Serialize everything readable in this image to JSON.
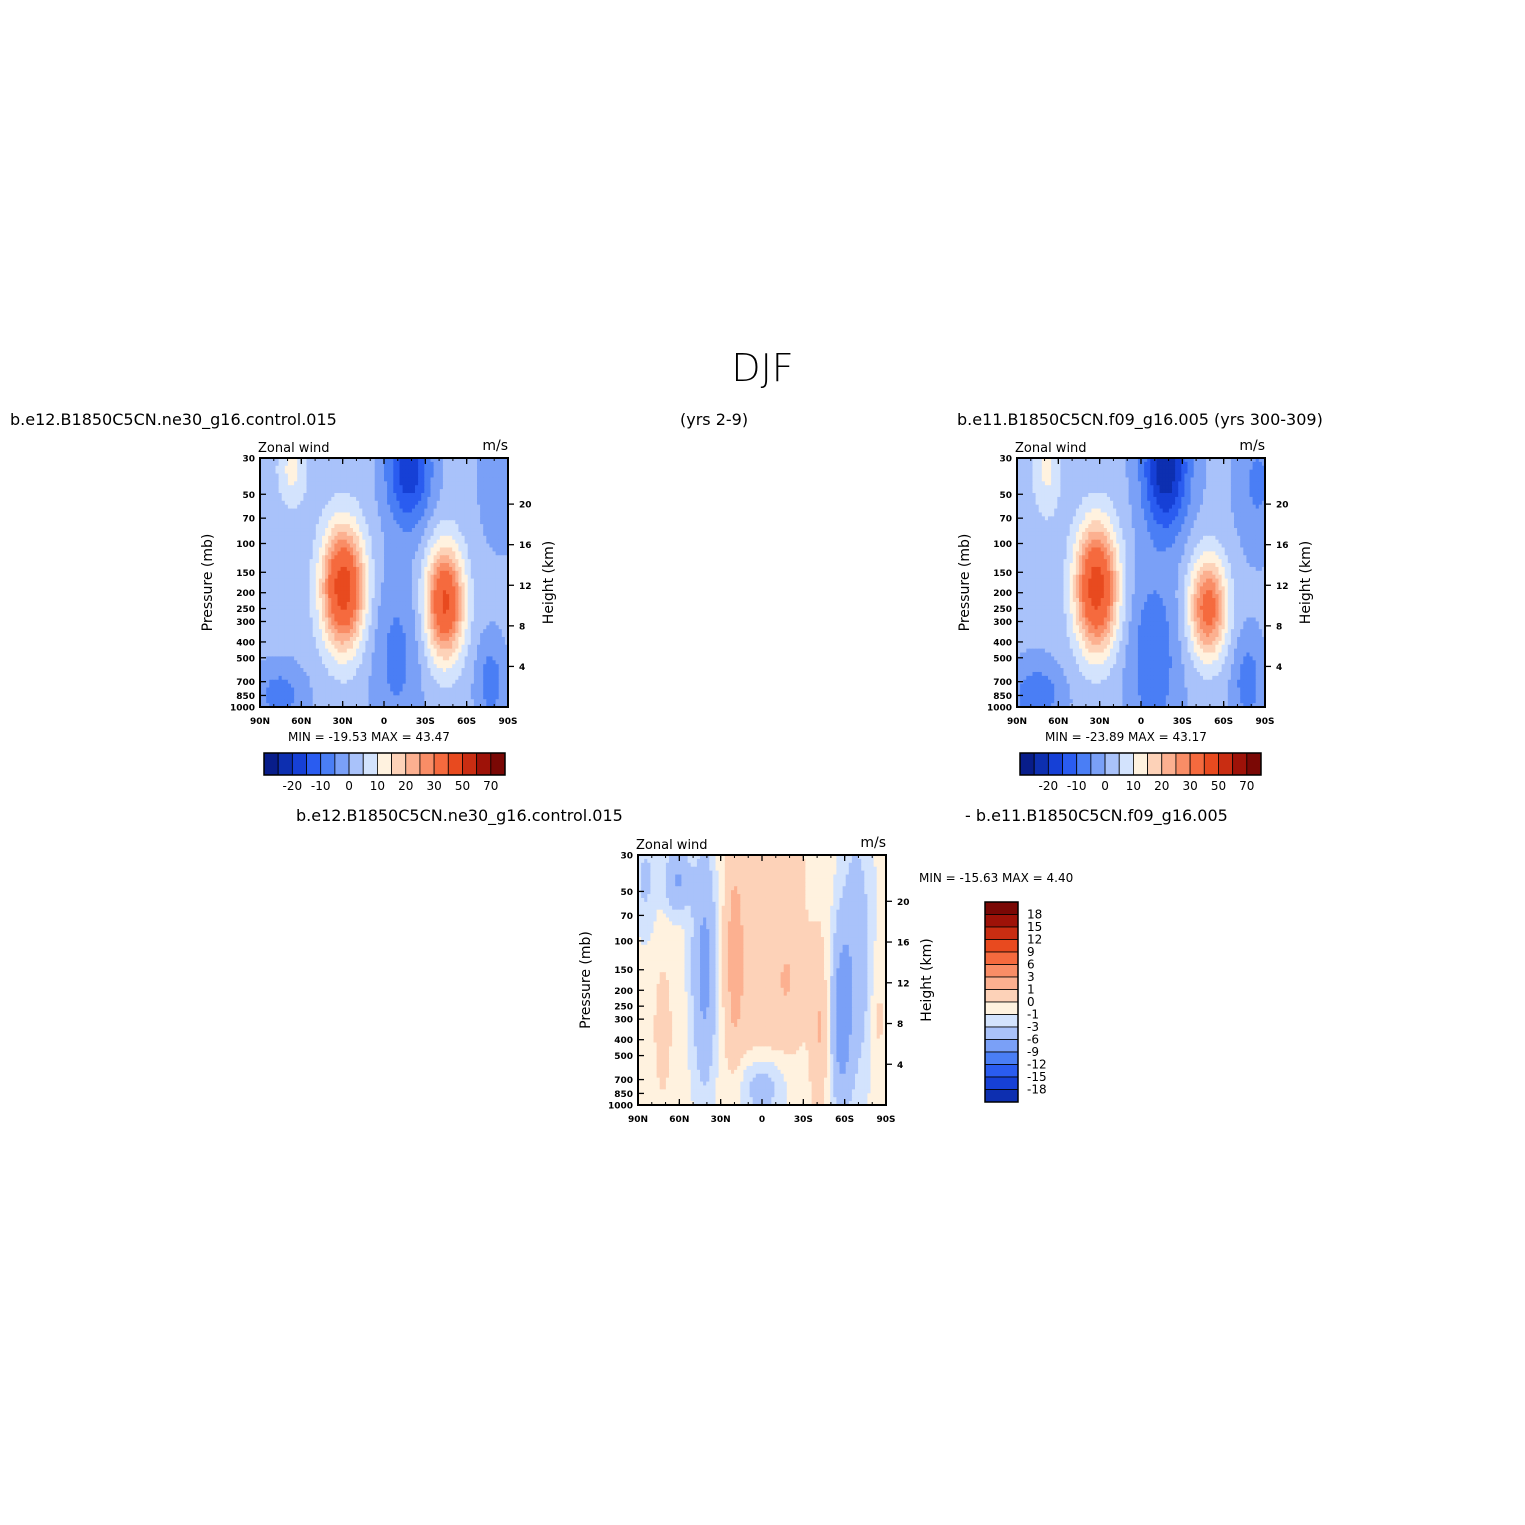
{
  "page": {
    "title": "DJF",
    "header_left": "b.e12.B1850C5CN.ne30_g16.control.015",
    "header_center": "(yrs 2-9)",
    "header_right": "b.e11.B1850C5CN.f09_g16.005 (yrs 300-309)",
    "diff_left": "b.e12.B1850C5CN.ne30_g16.control.015",
    "diff_right": "- b.e11.B1850C5CN.f09_g16.005"
  },
  "colors": {
    "abs_levels": [
      "#081d8a",
      "#0d2fb0",
      "#1640d6",
      "#2a5cf0",
      "#4a7ef5",
      "#7aa0f7",
      "#a9c2fa",
      "#d3e3fd",
      "#fff2df",
      "#fdd2b8",
      "#fcb090",
      "#f98d66",
      "#f56a3e",
      "#e84a1f",
      "#c92d12",
      "#9e1208",
      "#7a0805"
    ],
    "diff_levels": [
      "#081d8a",
      "#0d2fb0",
      "#1640d6",
      "#2a5cf0",
      "#4a7ef5",
      "#7aa0f7",
      "#a9c2fa",
      "#d3e3fd",
      "#fff2df",
      "#fdd2b8",
      "#fcb090",
      "#f98d66",
      "#f56a3e",
      "#e84a1f",
      "#c92d12",
      "#9e1208",
      "#7a0805"
    ]
  },
  "chart_data": [
    {
      "type": "heatmap",
      "title_left": "Zonal wind",
      "title_right": "m/s",
      "ylabel": "Pressure (mb)",
      "ylabel_right": "Height (km)",
      "x_ticks": [
        "90N",
        "60N",
        "30N",
        "0",
        "30S",
        "60S",
        "90S"
      ],
      "y_ticks": [
        "30",
        "50",
        "70",
        "100",
        "150",
        "200",
        "250",
        "300",
        "400",
        "500",
        "700",
        "850",
        "1000"
      ],
      "y_ticks_right": [
        "20",
        "16",
        "12",
        "8",
        "4"
      ],
      "stats": "MIN = -19.53   MAX =   43.47",
      "colorbar_labels": [
        "-20",
        "-10",
        "0",
        "10",
        "20",
        "30",
        "50",
        "70"
      ],
      "min": -19.53,
      "max": 43.47
    },
    {
      "type": "heatmap",
      "title_left": "Zonal wind",
      "title_right": "m/s",
      "ylabel": "Pressure (mb)",
      "ylabel_right": "Height (km)",
      "x_ticks": [
        "90N",
        "60N",
        "30N",
        "0",
        "30S",
        "60S",
        "90S"
      ],
      "y_ticks": [
        "30",
        "50",
        "70",
        "100",
        "150",
        "200",
        "250",
        "300",
        "400",
        "500",
        "700",
        "850",
        "1000"
      ],
      "y_ticks_right": [
        "20",
        "16",
        "12",
        "8",
        "4"
      ],
      "stats": "MIN = -23.89   MAX =   43.17",
      "colorbar_labels": [
        "-20",
        "-10",
        "0",
        "10",
        "20",
        "30",
        "50",
        "70"
      ],
      "min": -23.89,
      "max": 43.17
    },
    {
      "type": "heatmap",
      "title_left": "Zonal wind",
      "title_right": "m/s",
      "ylabel": "Pressure (mb)",
      "ylabel_right": "Height (km)",
      "x_ticks": [
        "90N",
        "60N",
        "30N",
        "0",
        "30S",
        "60S",
        "90S"
      ],
      "y_ticks": [
        "30",
        "50",
        "70",
        "100",
        "150",
        "200",
        "250",
        "300",
        "400",
        "500",
        "700",
        "850",
        "1000"
      ],
      "y_ticks_right": [
        "20",
        "16",
        "12",
        "8",
        "4"
      ],
      "stats": "MIN = -15.63   MAX =    4.40",
      "colorbar_labels": [
        "18",
        "15",
        "12",
        "9",
        "6",
        "3",
        "1",
        "0",
        "-1",
        "-3",
        "-6",
        "-9",
        "-12",
        "-15",
        "-18"
      ],
      "min": -15.63,
      "max": 4.4
    }
  ]
}
